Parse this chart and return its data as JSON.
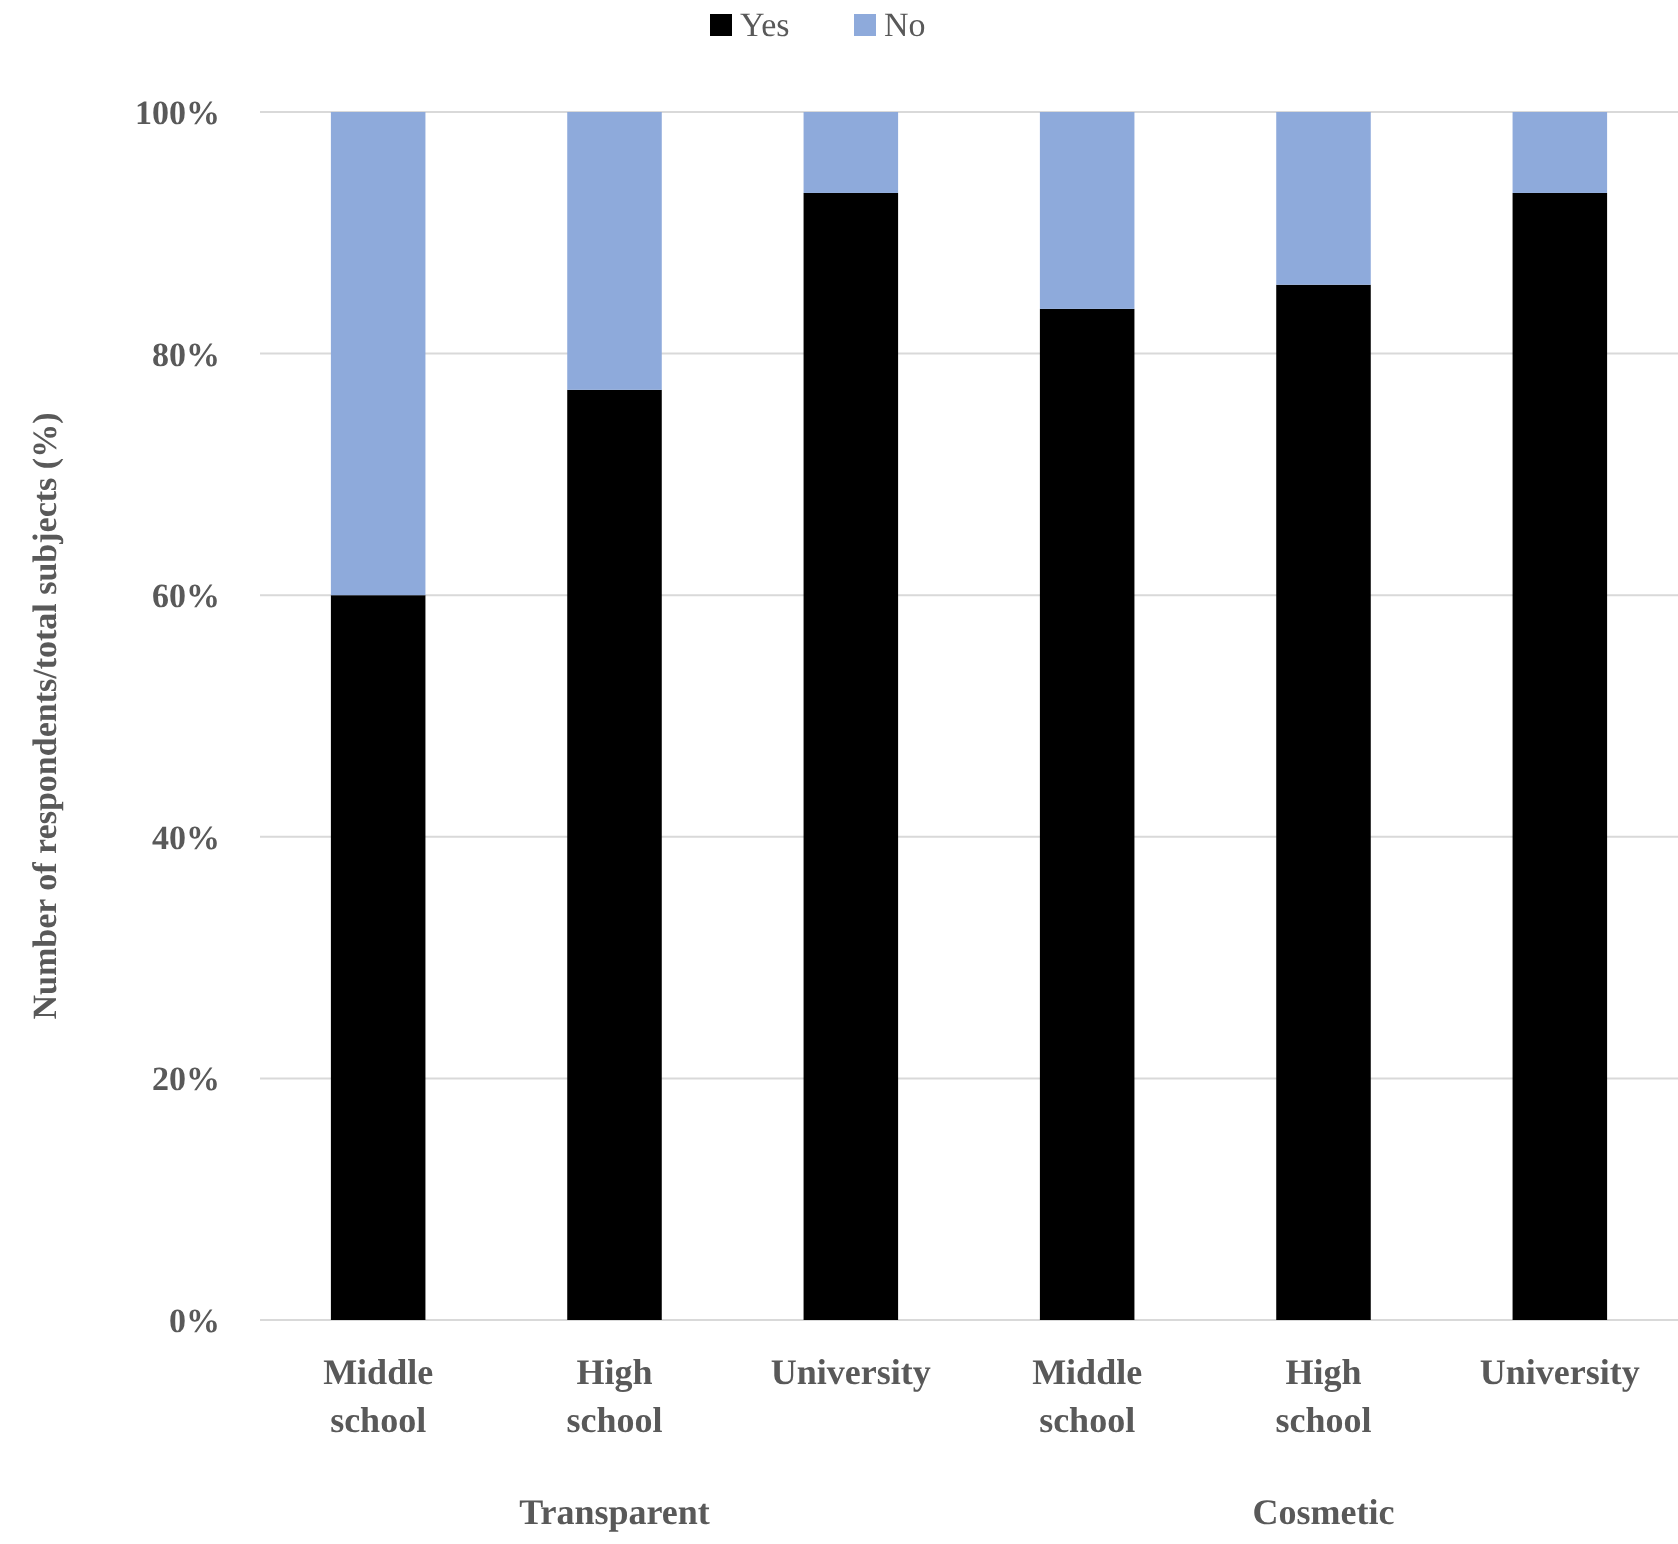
{
  "chart_data": {
    "type": "bar",
    "stacked": true,
    "ylabel": "Number of respondents/total  subjects (%)",
    "categories": [
      "Middle school",
      "High school",
      "University",
      "Middle school",
      "High school",
      "University"
    ],
    "series": [
      {
        "name": "Yes",
        "color": "#000000",
        "values": [
          60,
          77,
          93.3,
          83.7,
          85.7,
          93.3
        ]
      },
      {
        "name": "No",
        "color": "#8eaadb",
        "values": [
          40,
          23,
          6.7,
          16.3,
          14.3,
          6.7
        ]
      }
    ],
    "ylim": [
      0,
      100
    ],
    "yticks": [
      {
        "value": 0,
        "label": "0%"
      },
      {
        "value": 20,
        "label": "20%"
      },
      {
        "value": 40,
        "label": "40%"
      },
      {
        "value": 60,
        "label": "60%"
      },
      {
        "value": 80,
        "label": "80%"
      },
      {
        "value": 100,
        "label": "100%"
      }
    ],
    "grid": "y",
    "legend": "top",
    "annotations": [
      "Transparent",
      "Cosmetic"
    ]
  }
}
